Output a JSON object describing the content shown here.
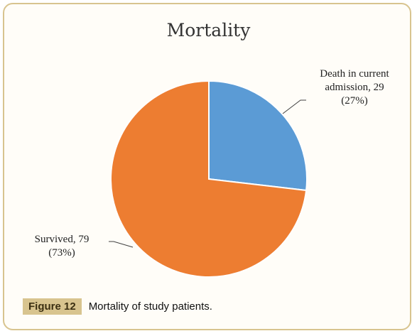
{
  "chart_data": {
    "type": "pie",
    "title": "Mortality",
    "slices": [
      {
        "label_line1": "Death in current",
        "label_line2": "admission, 29",
        "label_line3": "(27%)",
        "value": 29,
        "percent": 27,
        "color": "#5b9bd5"
      },
      {
        "label_line1": "Survived, 79",
        "label_line2": "(73%)",
        "value": 79,
        "percent": 73,
        "color": "#ed7d31"
      }
    ]
  },
  "caption": {
    "tag": "Figure 12",
    "text": "Mortality of study patients."
  }
}
